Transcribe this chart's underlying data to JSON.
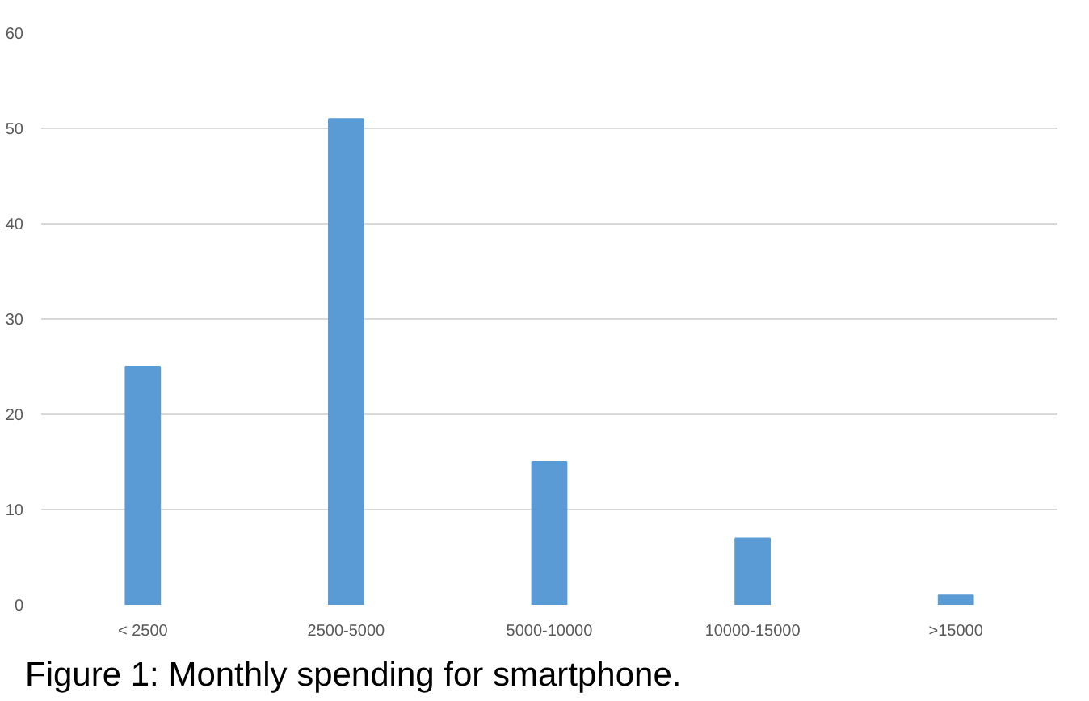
{
  "chart_data": {
    "type": "bar",
    "categories": [
      "< 2500",
      "2500-5000",
      "5000-10000",
      "10000-15000",
      ">15000"
    ],
    "values": [
      25,
      51,
      15,
      7,
      1
    ],
    "color": "#5b9bd5",
    "ylim": [
      0,
      60
    ],
    "yticks": [
      0,
      10,
      20,
      30,
      40,
      50,
      60
    ],
    "grid": "y",
    "annotations": [
      "Figure 1: Monthly spending for smartphone."
    ]
  }
}
